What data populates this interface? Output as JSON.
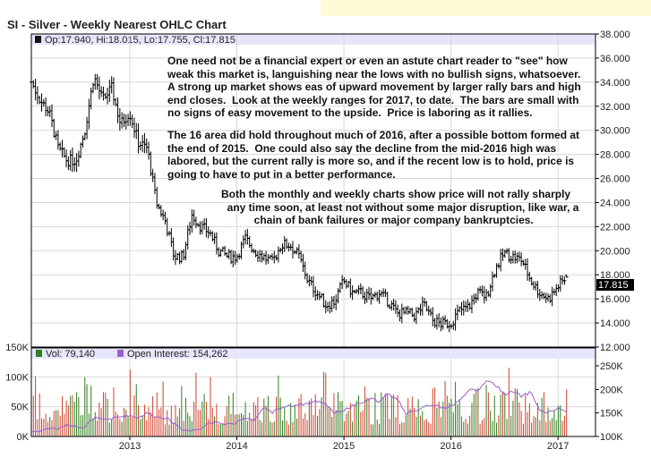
{
  "header": {
    "title": "SI - Silver - Weekly Nearest OHLC Chart"
  },
  "price_legend": "Op:17.940, Hi:18.015, Lo:17.755, Cl:17.815",
  "last_price": "17.815",
  "volume_legend": {
    "vol": "Vol: 79,140",
    "oi": "Open Interest: 154,262"
  },
  "annotations": {
    "p1": "One need not be a financial expert or even an astute chart reader to \"see\" how\nweak this market is, languishing near the lows with no bullish signs, whatsoever.\nA strong up market shows eas of upward movement by larger rally bars and high\nend closes.  Look at the weekly ranges for 2017, to date.  The bars are small with\nno signs of easy movement to the upside.  Price is laboring as it rallies.",
    "p2": "The 16 area did hold throughout much of 2016, after a possible bottom formed at\nthe end of 2015.  One could also say the decline from the mid-2016 high was\nlabored, but the current rally is more so, and if the recent low is to hold, price is\ngoing to have to put in a better performance.",
    "p3": "Both the monthly and weekly charts show price will not rally sharply\n  any time soon, at least not without some major disruption, like war, a\n           chain of bank failures or major company bankruptcies."
  },
  "colors": {
    "up": "#2e7d1e",
    "down": "#d0402a",
    "oi": "#9a5fd0",
    "legend_band": "#e6e6fb",
    "last_price_bg": "#000000"
  },
  "chart_data": {
    "type": "ohlc",
    "title": "SI - Silver - Weekly Nearest OHLC Chart",
    "x_ticks": [
      "2013",
      "2014",
      "2015",
      "2016",
      "2017"
    ],
    "x_range": [
      2012.08,
      2017.35
    ],
    "price_axis": {
      "ticks": [
        "38.000",
        "36.000",
        "34.000",
        "32.000",
        "30.000",
        "28.000",
        "26.000",
        "24.000",
        "22.000",
        "20.000",
        "18.000",
        "16.000",
        "14.000",
        "12.000"
      ],
      "ylim": [
        12,
        38
      ]
    },
    "volume_axis": {
      "ticks": [
        "150K",
        "100K",
        "50K",
        "0K"
      ],
      "ylim": [
        0,
        150000
      ]
    },
    "oi_axis": {
      "ticks": [
        "250K",
        "200K",
        "150K",
        "100K"
      ],
      "ylim": [
        100000,
        250000
      ]
    },
    "monthly_close_start": 2012.08,
    "monthly_close": [
      34,
      32.5,
      31.5,
      28.5,
      27.5,
      27.5,
      30,
      34.5,
      32.5,
      33.5,
      30.5,
      31.5,
      29,
      28.5,
      24,
      22.5,
      19.5,
      19.5,
      23,
      22,
      21.5,
      20,
      19.5,
      19.5,
      21,
      20,
      19.5,
      19,
      20.5,
      20.5,
      19.5,
      17.5,
      16.5,
      15.5,
      15.8,
      17.5,
      16.5,
      16.5,
      16,
      16.5,
      15.8,
      14.8,
      14.8,
      14.6,
      15.5,
      14.2,
      13.9,
      14,
      15,
      15.3,
      16.5,
      16.2,
      18.5,
      19.8,
      19.5,
      19.2,
      17.5,
      16.5,
      16,
      17,
      17.8
    ],
    "open_interest_monthly": [
      110000,
      112000,
      118000,
      116000,
      125000,
      122000,
      120000,
      140000,
      135000,
      138000,
      142000,
      145000,
      140000,
      150000,
      142000,
      140000,
      128000,
      115000,
      112000,
      118000,
      130000,
      128000,
      126000,
      128000,
      140000,
      135000,
      160000,
      150000,
      162000,
      165000,
      168000,
      170000,
      175000,
      170000,
      150000,
      155000,
      165000,
      170000,
      180000,
      175000,
      190000,
      180000,
      150000,
      152000,
      165000,
      168000,
      160000,
      165000,
      175000,
      200000,
      195000,
      220000,
      210000,
      190000,
      195000,
      185000,
      195000,
      155000,
      150000,
      160000,
      154262
    ]
  }
}
